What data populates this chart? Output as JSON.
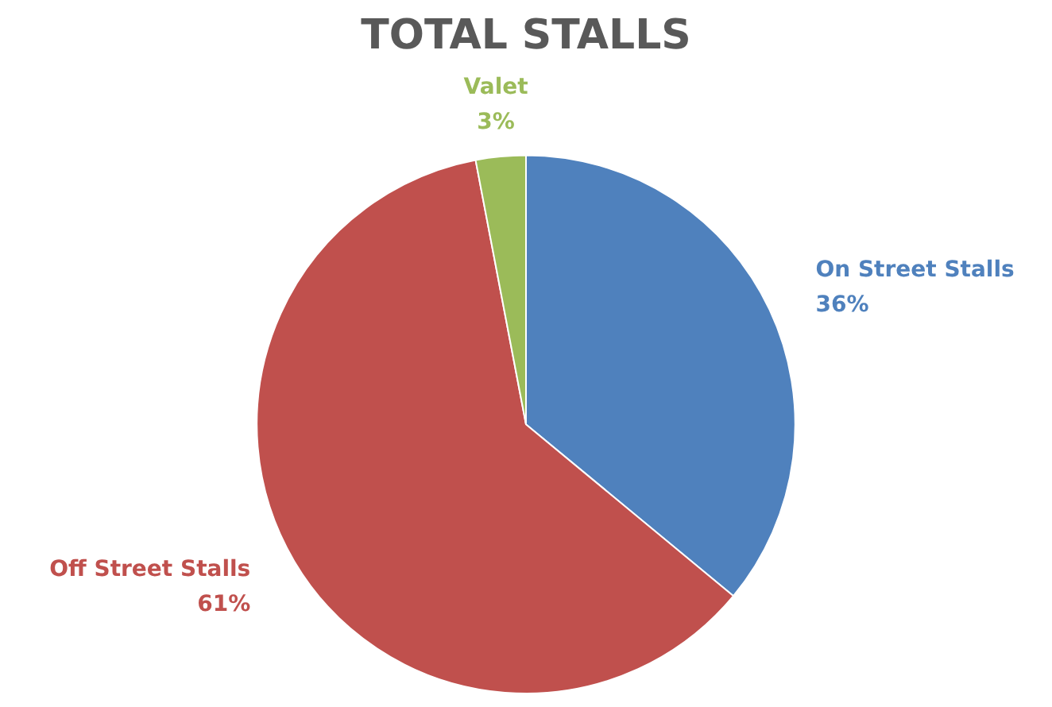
{
  "chart_data": {
    "type": "pie",
    "title": "TOTAL STALLS",
    "categories": [
      "On Street Stalls",
      "Off Street Stalls",
      "Valet"
    ],
    "values": [
      36,
      61,
      3
    ],
    "value_labels": [
      "36%",
      "61%",
      "3%"
    ],
    "colors": [
      "#4f81bd",
      "#c0504d",
      "#9bbb59"
    ],
    "legend": false
  }
}
